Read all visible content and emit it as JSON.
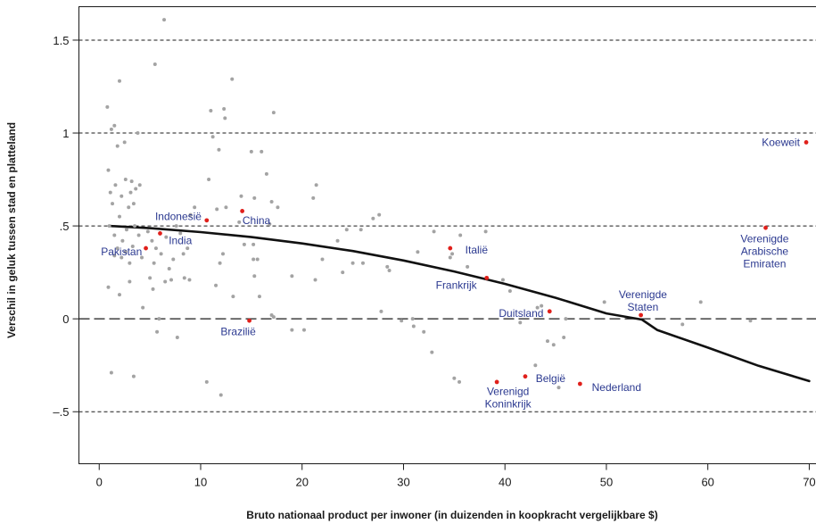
{
  "chart_data": {
    "type": "scatter",
    "title": "",
    "xlabel": "Bruto nationaal product per inwoner (in duizenden in koopkracht vergelijkbare $)",
    "ylabel": "Verschil in geluk tussen stad en platteland",
    "xlim": [
      -2,
      71.5
    ],
    "ylim": [
      -0.78,
      1.68
    ],
    "x_ticks": [
      0,
      10,
      20,
      30,
      40,
      50,
      60,
      70
    ],
    "x_tick_labels": [
      "0",
      "10",
      "20",
      "30",
      "40",
      "50",
      "60",
      "70"
    ],
    "y_ticks": [
      1.5,
      1,
      0.5,
      0,
      -0.5
    ],
    "y_tick_labels": [
      "1.5",
      "1",
      ".5",
      "0",
      "–.5"
    ],
    "gridlines": "dashed horizontal at each y tick; long-dashed at 0",
    "colors": {
      "grey_points": "#a3a3a3",
      "highlight_points": "#e0201b",
      "labels": "#2b3990",
      "curve": "#111111"
    },
    "fit_curve": {
      "type": "quadratic",
      "points": [
        [
          1,
          0.5
        ],
        [
          5,
          0.488
        ],
        [
          10,
          0.467
        ],
        [
          15,
          0.44
        ],
        [
          20,
          0.406
        ],
        [
          25,
          0.365
        ],
        [
          30,
          0.314
        ],
        [
          35,
          0.255
        ],
        [
          40,
          0.188
        ],
        [
          45,
          0.113
        ],
        [
          50,
          0.029
        ],
        [
          53.5,
          -0.004
        ],
        [
          55,
          -0.06
        ],
        [
          60,
          -0.155
        ],
        [
          65,
          -0.253
        ],
        [
          70,
          -0.335
        ]
      ]
    },
    "highlighted": [
      {
        "name": "Koeweit",
        "x": 69.7,
        "y": 0.95
      },
      {
        "name": "Verenigde Arabische Emiraten",
        "x": 65.7,
        "y": 0.49
      },
      {
        "name": "Indonesië",
        "x": 10.6,
        "y": 0.53
      },
      {
        "name": "China",
        "x": 14.1,
        "y": 0.58
      },
      {
        "name": "India",
        "x": 6,
        "y": 0.46
      },
      {
        "name": "Pakistan",
        "x": 4.6,
        "y": 0.38
      },
      {
        "name": "Italië",
        "x": 34.6,
        "y": 0.38
      },
      {
        "name": "Frankrijk",
        "x": 38.2,
        "y": 0.22
      },
      {
        "name": "Verenigde Staten",
        "x": 53.4,
        "y": 0.02
      },
      {
        "name": "Duitsland",
        "x": 44.4,
        "y": 0.04
      },
      {
        "name": "Brazilië",
        "x": 14.8,
        "y": -0.01
      },
      {
        "name": "België",
        "x": 42,
        "y": -0.31
      },
      {
        "name": "Verenigd Koninkrijk",
        "x": 39.2,
        "y": -0.34
      },
      {
        "name": "Nederland",
        "x": 47.4,
        "y": -0.35
      }
    ],
    "labels": [
      {
        "lines": [
          "Koeweit"
        ],
        "x": 67.2,
        "y": 0.95
      },
      {
        "lines": [
          "Verenigde",
          "Arabische",
          "Emiraten"
        ],
        "x": 65.6,
        "y": 0.43
      },
      {
        "lines": [
          "Indonesië"
        ],
        "x": 7.8,
        "y": 0.55
      },
      {
        "lines": [
          "China"
        ],
        "x": 15.5,
        "y": 0.53
      },
      {
        "lines": [
          "India"
        ],
        "x": 8,
        "y": 0.42
      },
      {
        "lines": [
          "Pakistan"
        ],
        "x": 2.2,
        "y": 0.36
      },
      {
        "lines": [
          "Italië"
        ],
        "x": 37.2,
        "y": 0.37
      },
      {
        "lines": [
          "Frankrijk"
        ],
        "x": 35.2,
        "y": 0.18
      },
      {
        "lines": [
          "Verenigde",
          "Staten"
        ],
        "x": 53.6,
        "y": 0.13
      },
      {
        "lines": [
          "Duitsland"
        ],
        "x": 41.6,
        "y": 0.03
      },
      {
        "lines": [
          "Brazilië"
        ],
        "x": 13.7,
        "y": -0.07
      },
      {
        "lines": [
          "België"
        ],
        "x": 44.5,
        "y": -0.32
      },
      {
        "lines": [
          "Verenigd",
          "Koninkrijk"
        ],
        "x": 40.3,
        "y": -0.39
      },
      {
        "lines": [
          "Nederland"
        ],
        "x": 51,
        "y": -0.37
      }
    ],
    "grey_points": [
      [
        0.8,
        1.14
      ],
      [
        1.2,
        1.02
      ],
      [
        1.5,
        1.04
      ],
      [
        2.0,
        1.28
      ],
      [
        2.5,
        0.95
      ],
      [
        1.8,
        0.93
      ],
      [
        0.9,
        0.8
      ],
      [
        1.1,
        0.68
      ],
      [
        1.6,
        0.72
      ],
      [
        2.2,
        0.66
      ],
      [
        2.6,
        0.75
      ],
      [
        3.1,
        0.68
      ],
      [
        3.4,
        0.62
      ],
      [
        3.6,
        0.7
      ],
      [
        4.0,
        0.72
      ],
      [
        3.2,
        0.74
      ],
      [
        3.8,
        1.0
      ],
      [
        2.9,
        0.6
      ],
      [
        1.3,
        0.62
      ],
      [
        2.0,
        0.55
      ],
      [
        1.0,
        0.5
      ],
      [
        1.5,
        0.45
      ],
      [
        2.3,
        0.42
      ],
      [
        2.7,
        0.48
      ],
      [
        3.5,
        0.5
      ],
      [
        1.8,
        0.38
      ],
      [
        2.2,
        0.33
      ],
      [
        1.5,
        0.34
      ],
      [
        2.6,
        0.36
      ],
      [
        3.0,
        0.3
      ],
      [
        3.3,
        0.39
      ],
      [
        3.9,
        0.45
      ],
      [
        4.2,
        0.33
      ],
      [
        4.8,
        0.47
      ],
      [
        5.2,
        0.42
      ],
      [
        5.6,
        0.38
      ],
      [
        6.1,
        0.35
      ],
      [
        5.0,
        0.22
      ],
      [
        5.4,
        0.3
      ],
      [
        6.6,
        0.44
      ],
      [
        6.9,
        0.27
      ],
      [
        7.3,
        0.32
      ],
      [
        7.6,
        0.5
      ],
      [
        8.0,
        0.46
      ],
      [
        8.3,
        0.35
      ],
      [
        8.7,
        0.38
      ],
      [
        9.0,
        0.56
      ],
      [
        9.4,
        0.6
      ],
      [
        8.4,
        0.22
      ],
      [
        8.9,
        0.21
      ],
      [
        7.1,
        0.21
      ],
      [
        6.5,
        0.2
      ],
      [
        5.3,
        0.16
      ],
      [
        4.3,
        0.06
      ],
      [
        5.9,
        0.0
      ],
      [
        5.7,
        -0.07
      ],
      [
        7.7,
        -0.1
      ],
      [
        0.9,
        0.17
      ],
      [
        2.0,
        0.13
      ],
      [
        3.0,
        0.2
      ],
      [
        5.5,
        1.37
      ],
      [
        6.4,
        1.61
      ],
      [
        1.2,
        -0.29
      ],
      [
        3.4,
        -0.31
      ],
      [
        10.8,
        0.75
      ],
      [
        11.2,
        0.98
      ],
      [
        11.8,
        0.91
      ],
      [
        11.0,
        1.12
      ],
      [
        12.3,
        1.13
      ],
      [
        12.4,
        1.08
      ],
      [
        13.1,
        1.29
      ],
      [
        11.6,
        0.59
      ],
      [
        12.5,
        0.6
      ],
      [
        14.0,
        0.66
      ],
      [
        15.0,
        0.9
      ],
      [
        15.3,
        0.65
      ],
      [
        16.0,
        0.9
      ],
      [
        16.5,
        0.78
      ],
      [
        17.2,
        1.11
      ],
      [
        17.0,
        0.63
      ],
      [
        17.6,
        0.6
      ],
      [
        16.8,
        0.51
      ],
      [
        13.8,
        0.52
      ],
      [
        14.3,
        0.4
      ],
      [
        15.2,
        0.4
      ],
      [
        15.6,
        0.32
      ],
      [
        12.2,
        0.35
      ],
      [
        11.5,
        0.18
      ],
      [
        13.2,
        0.12
      ],
      [
        15.8,
        0.12
      ],
      [
        17.0,
        0.02
      ],
      [
        17.2,
        0.01
      ],
      [
        11.9,
        0.3
      ],
      [
        10.6,
        -0.34
      ],
      [
        12.0,
        -0.41
      ],
      [
        15.3,
        0.23
      ],
      [
        15.2,
        0.32
      ],
      [
        19.0,
        0.23
      ],
      [
        19.0,
        -0.06
      ],
      [
        20.2,
        -0.06
      ],
      [
        21.1,
        0.65
      ],
      [
        21.4,
        0.72
      ],
      [
        21.3,
        0.21
      ],
      [
        22.0,
        0.32
      ],
      [
        23.5,
        0.42
      ],
      [
        24.0,
        0.25
      ],
      [
        24.4,
        0.48
      ],
      [
        25.0,
        0.3
      ],
      [
        25.8,
        0.48
      ],
      [
        26.0,
        0.3
      ],
      [
        27.0,
        0.54
      ],
      [
        27.6,
        0.56
      ],
      [
        28.4,
        0.28
      ],
      [
        28.6,
        0.26
      ],
      [
        27.8,
        0.04
      ],
      [
        29.8,
        -0.01
      ],
      [
        30.9,
        0.0
      ],
      [
        32.0,
        -0.07
      ],
      [
        31.0,
        -0.04
      ],
      [
        32.8,
        -0.18
      ],
      [
        35.0,
        -0.32
      ],
      [
        35.5,
        -0.34
      ],
      [
        35.6,
        0.45
      ],
      [
        38.1,
        0.47
      ],
      [
        34.6,
        0.33
      ],
      [
        34.8,
        0.35
      ],
      [
        40.5,
        0.15
      ],
      [
        41.5,
        -0.02
      ],
      [
        43.2,
        0.06
      ],
      [
        43.6,
        0.07
      ],
      [
        44.2,
        -0.12
      ],
      [
        44.8,
        -0.14
      ],
      [
        45.3,
        -0.37
      ],
      [
        45.8,
        -0.1
      ],
      [
        43.0,
        -0.25
      ],
      [
        46.0,
        0.0
      ],
      [
        49.8,
        0.09
      ],
      [
        57.5,
        -0.03
      ],
      [
        59.3,
        0.09
      ],
      [
        64.2,
        -0.01
      ],
      [
        31.4,
        0.36
      ],
      [
        33.0,
        0.47
      ],
      [
        36.3,
        0.28
      ],
      [
        39.8,
        0.21
      ]
    ]
  }
}
